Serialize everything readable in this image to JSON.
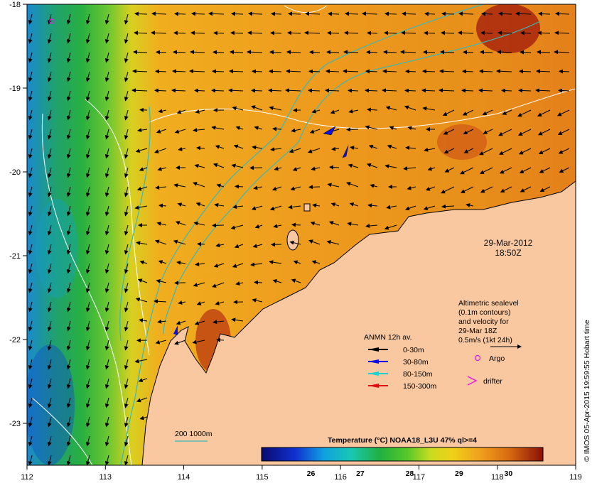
{
  "map": {
    "x_ticks": [
      "112",
      "113",
      "114",
      "115",
      "116",
      "117",
      "118",
      "119"
    ],
    "y_ticks": [
      "-18",
      "-19",
      "-20",
      "-21",
      "-22",
      "-23"
    ],
    "lon_range": [
      112,
      119
    ],
    "lat_range": [
      -23.5,
      -18
    ]
  },
  "stamp": {
    "date": "29-Mar-2012",
    "time": "18:50Z"
  },
  "altimetry": {
    "lines": [
      "Altimetric sealevel",
      "(0.1m contours)",
      "and velocity for",
      "29-Mar 18Z",
      "0.5m/s (1kt 24h)"
    ]
  },
  "moorings": {
    "title": "ANMN 12h av.",
    "items": [
      {
        "label": "0-30m",
        "color": "#000000"
      },
      {
        "label": "30-80m",
        "color": "#1010e0"
      },
      {
        "label": "80-150m",
        "color": "#20d0d0"
      },
      {
        "label": "150-300m",
        "color": "#e01010"
      }
    ]
  },
  "markers": {
    "argo": {
      "label": "Argo",
      "color": "#e020e0"
    },
    "drifter": {
      "label": "drifter",
      "color": "#e020e0"
    }
  },
  "isobath_label": "200  1000m",
  "colorbar": {
    "title": "Temperature (°C) NOAA18_L3U 47% ql>=4",
    "ticks": [
      "26",
      "27",
      "28",
      "29",
      "30"
    ],
    "tick_values": [
      26,
      27,
      28,
      29,
      30
    ],
    "range": [
      25.0,
      30.7
    ]
  },
  "credit": "© IMOS 05-Apr-2015 19:59:55 Hobart time",
  "colors": {
    "land": "#f9c8a0",
    "warm_sst": "#ee9a1e",
    "isobath": "#3ab8b8",
    "contour": "#ffffff"
  }
}
